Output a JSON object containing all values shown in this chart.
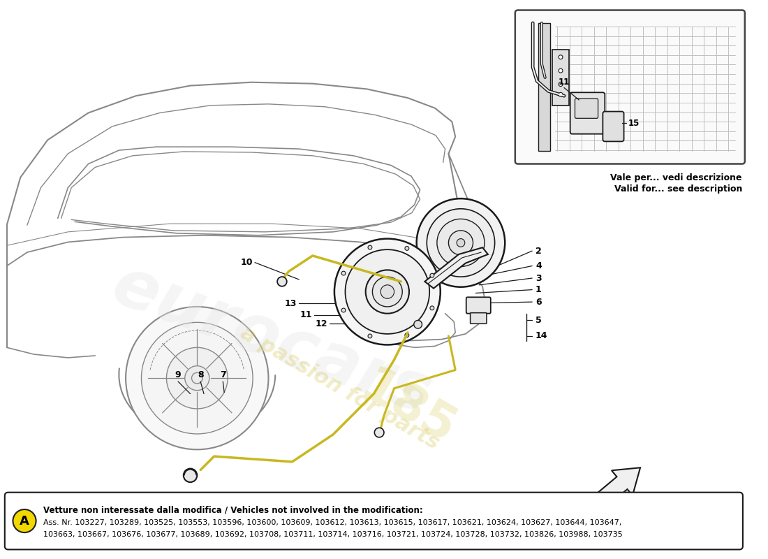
{
  "bg_color": "#ffffff",
  "bottom_text_bold": "Vetture non interessate dalla modifica / Vehicles not involved in the modification:",
  "bottom_text_line2": "Ass. Nr. 103227, 103289, 103525, 103553, 103596, 103600, 103609, 103612, 103613, 103615, 103617, 103621, 103624, 103627, 103644, 103647,",
  "bottom_text_line3": "103663, 103667, 103676, 103677, 103689, 103692, 103708, 103711, 103714, 103716, 103721, 103724, 103728, 103732, 103826, 103988, 103735",
  "inset_text1": "Vale per... vedi descrizione",
  "inset_text2": "Valid for... see description",
  "watermark_color": "#d4c44a",
  "line_color": "#1a1a1a",
  "car_line_color": "#888888",
  "cable_color": "#c8b820",
  "label_color": "#000000"
}
